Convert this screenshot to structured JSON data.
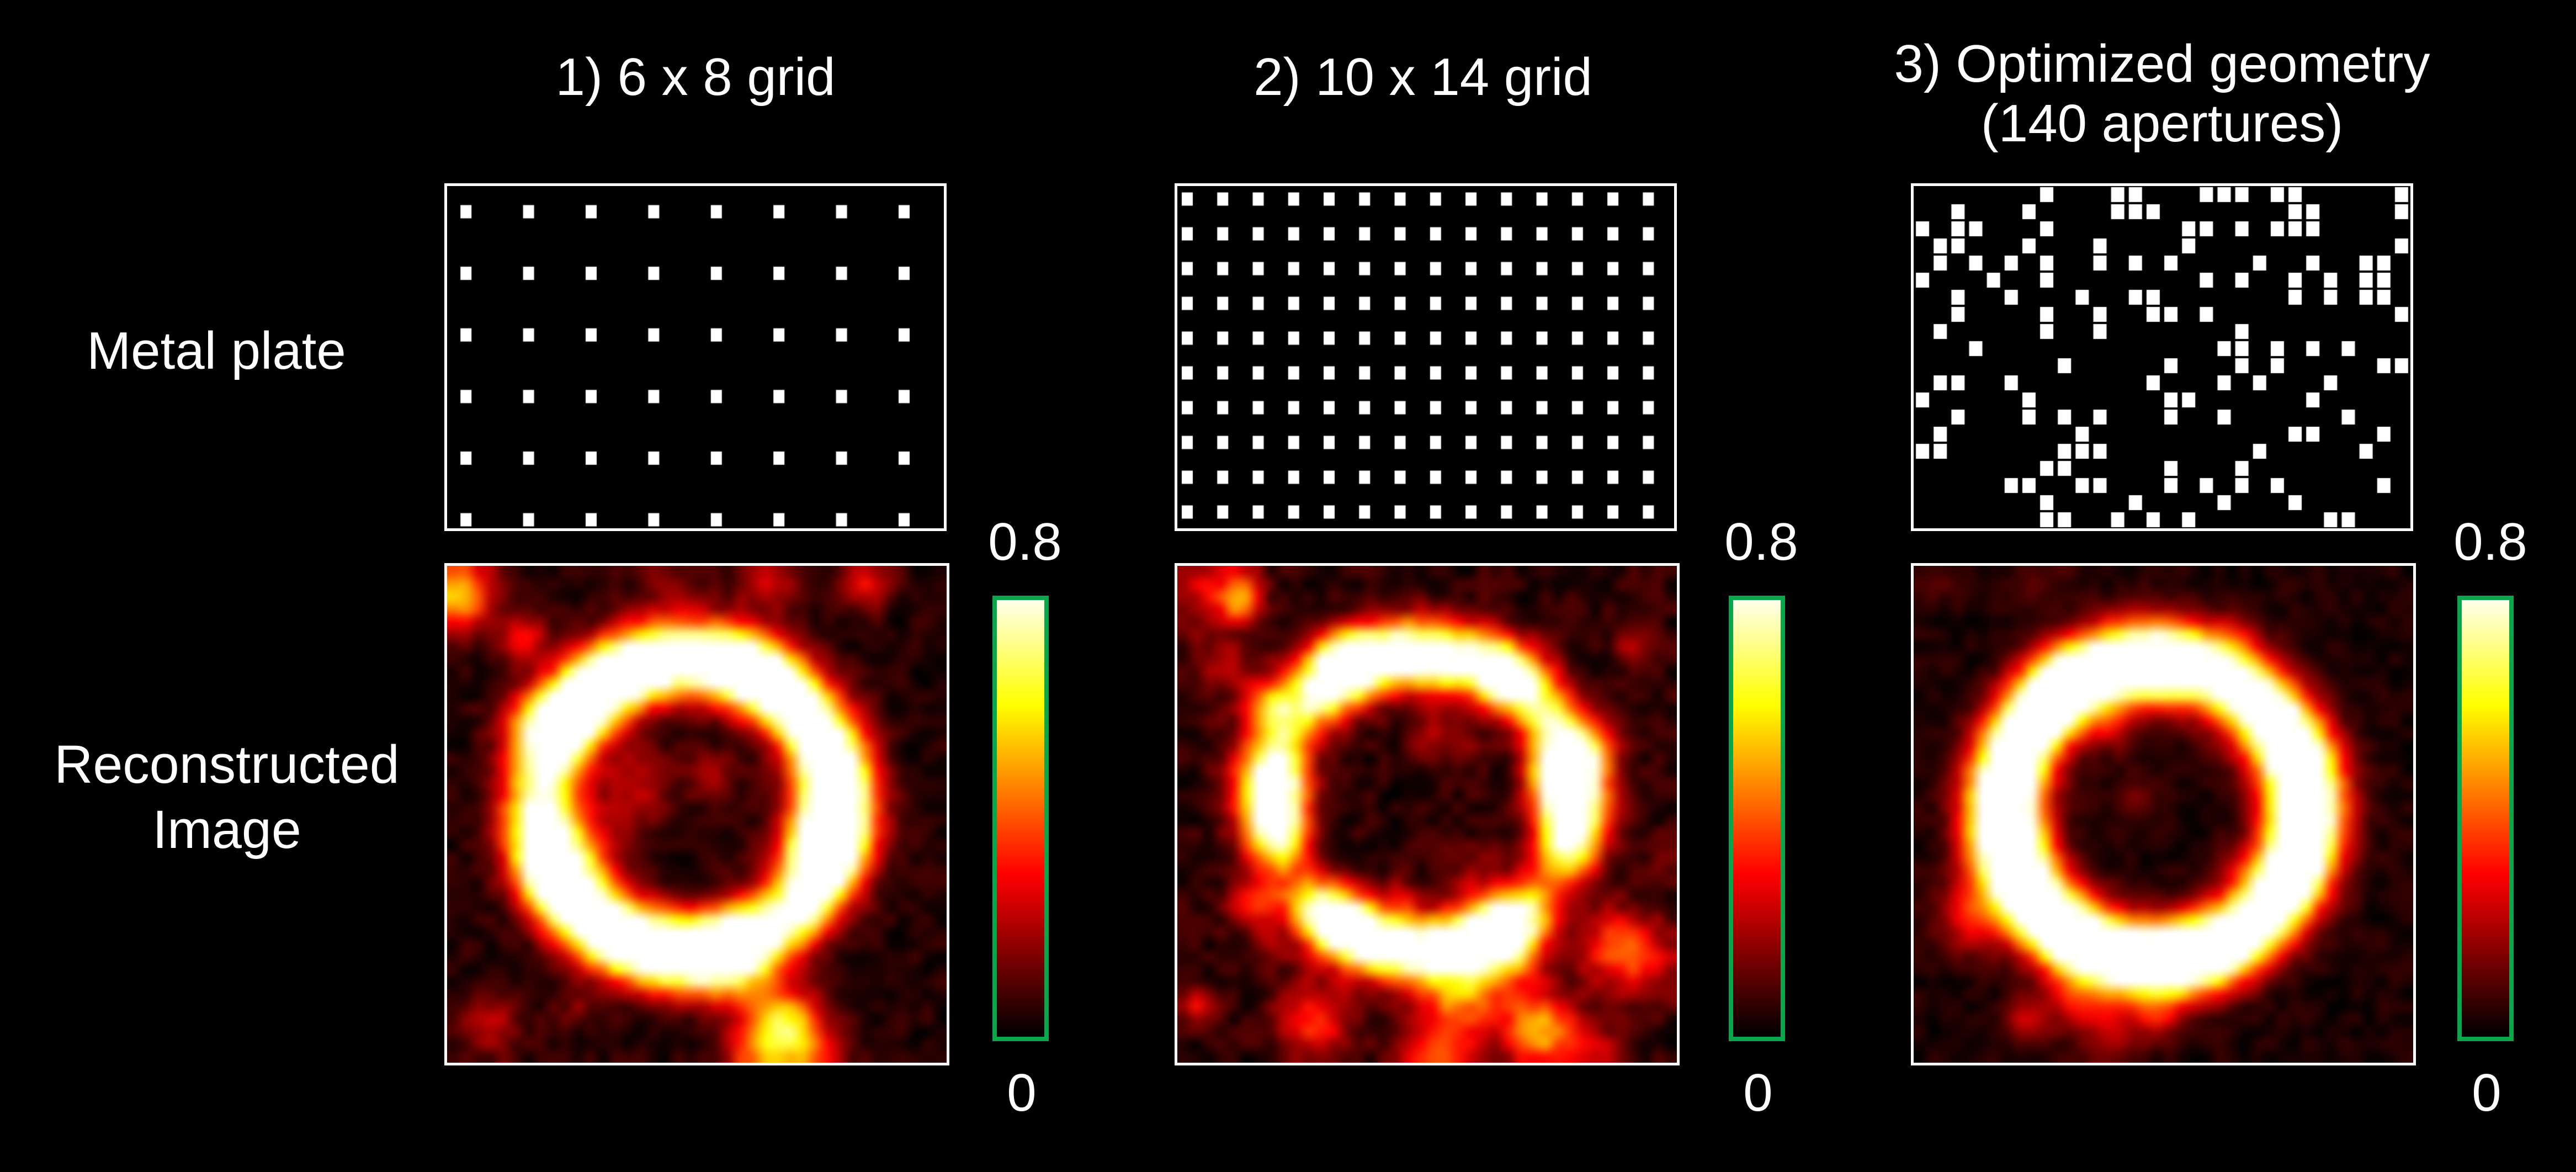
{
  "figure": {
    "background": "#000000",
    "text_color": "#ffffff",
    "row_labels": {
      "metal_plate": "Metal plate",
      "reconstructed_line1": "Reconstructed",
      "reconstructed_line2": "Image"
    },
    "columns": [
      {
        "title": "1) 6 x 8 grid",
        "title_line2": ""
      },
      {
        "title": "2) 10 x 14 grid",
        "title_line2": ""
      },
      {
        "title": "3) Optimized geometry",
        "title_line2": "(140 apertures)"
      }
    ],
    "colorbar": {
      "max_label": "0.8",
      "min_label": "0",
      "border_color": "#0aa64c",
      "colormap": "hot"
    }
  },
  "chart_data": {
    "type": "heatmap",
    "colormap": "hot",
    "value_range": [
      0,
      0.8
    ],
    "colorbar_tick_labels": [
      "0.8",
      "0"
    ],
    "rows": [
      "Metal plate",
      "Reconstructed Image"
    ],
    "panels": [
      {
        "column": 1,
        "title": "1) 6 x 8 grid",
        "metal_plate": {
          "pattern": "regular-grid",
          "rows": 6,
          "cols": 8,
          "aperture_count": 48,
          "x0": 0.038,
          "dx": 0.126,
          "y0": 0.075,
          "dy": 0.18,
          "dot_w": 20,
          "dot_h": 24
        },
        "reconstruction": {
          "description": "solid bright ring, moderate dark-red background speckle",
          "grid_n": 40,
          "seed": 7,
          "ring": {
            "cx": 0.47,
            "cy": 0.47,
            "r": 0.295,
            "sigma": 0.052,
            "gain": 1.55,
            "patchiness": 0.38,
            "patch_freq": 5
          },
          "noise": {
            "blobs": 26,
            "amp": 0.34,
            "sigma_min": 1.0,
            "sigma_max": 2.2,
            "pixel": 0.1
          }
        }
      },
      {
        "column": 2,
        "title": "2) 10 x 14 grid",
        "metal_plate": {
          "pattern": "regular-grid",
          "rows": 10,
          "cols": 14,
          "aperture_count": 140,
          "x0": 0.02,
          "dx": 0.0714,
          "y0": 0.038,
          "dy": 0.1016,
          "dot_w": 20,
          "dot_h": 24
        },
        "reconstruction": {
          "description": "thinner broken ring, strongest background speckle",
          "grid_n": 40,
          "seed": 13,
          "ring": {
            "cx": 0.48,
            "cy": 0.46,
            "r": 0.3,
            "sigma": 0.045,
            "gain": 1.35,
            "patchiness": 0.7,
            "patch_freq": 6
          },
          "noise": {
            "blobs": 40,
            "amp": 0.38,
            "sigma_min": 1.0,
            "sigma_max": 2.4,
            "pixel": 0.12
          }
        }
      },
      {
        "column": 3,
        "title": "3) Optimized geometry (140 apertures)",
        "metal_plate": {
          "pattern": "random",
          "grid_cols": 28,
          "grid_rows": 20,
          "aperture_count": 140,
          "seed": 5,
          "dot_w": 24,
          "dot_h": 27
        },
        "reconstruction": {
          "description": "clean solid bright ring, faint background speckle",
          "grid_n": 40,
          "seed": 21,
          "ring": {
            "cx": 0.47,
            "cy": 0.48,
            "r": 0.3,
            "sigma": 0.052,
            "gain": 1.6,
            "patchiness": 0.25,
            "patch_freq": 4
          },
          "noise": {
            "blobs": 18,
            "amp": 0.26,
            "sigma_min": 1.0,
            "sigma_max": 2.0,
            "pixel": 0.08
          }
        }
      }
    ]
  }
}
